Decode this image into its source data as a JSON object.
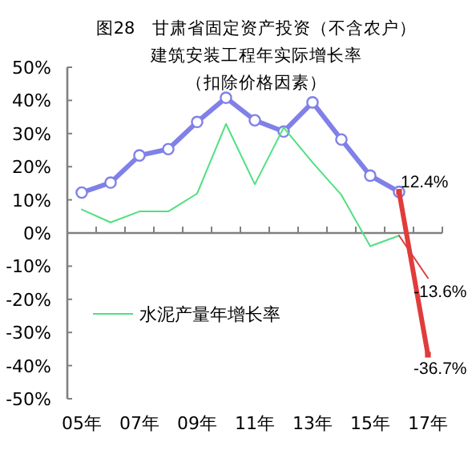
{
  "chart_data": {
    "type": "line",
    "title": "图28　甘肃省固定资产投资（不含农户）",
    "subtitle": "建筑安装工程年实际增长率（扣除价格因素）",
    "categories": [
      "05年",
      null,
      "07年",
      null,
      "09年",
      null,
      "11年",
      null,
      "13年",
      null,
      "15年",
      null,
      "17年"
    ],
    "ylim": [
      -50,
      50
    ],
    "yticks": [
      {
        "value": -50,
        "label": "-50%"
      },
      {
        "value": -40,
        "label": "-40%"
      },
      {
        "value": -30,
        "label": "-30%"
      },
      {
        "value": -20,
        "label": "-20%"
      },
      {
        "value": -10,
        "label": "-10%"
      },
      {
        "value": 0,
        "label": "0%"
      },
      {
        "value": 10,
        "label": "10%"
      },
      {
        "value": 20,
        "label": "20%"
      },
      {
        "value": 30,
        "label": "30%"
      },
      {
        "value": 40,
        "label": "40%"
      },
      {
        "value": 50,
        "label": "50%"
      }
    ],
    "legend": "left",
    "series": [
      {
        "color": "#8080e8",
        "marker": "circle",
        "values": [
          12.2,
          15.2,
          23.4,
          25.3,
          33.5,
          40.8,
          34,
          30.6,
          39.4,
          28.2,
          17.3,
          12.4,
          null
        ]
      },
      {
        "color": "#e03c3c",
        "marker": "square",
        "values": [
          null,
          null,
          null,
          null,
          null,
          null,
          null,
          null,
          null,
          null,
          null,
          12.4,
          -36.7
        ],
        "value_labels": [
          null,
          null,
          null,
          null,
          null,
          null,
          null,
          null,
          null,
          null,
          null,
          "12.4%",
          "-36.7%"
        ]
      },
      {
        "name": "水泥产量年增长率",
        "color": "#50e080",
        "values": [
          7.1,
          3.2,
          6.5,
          6.5,
          11.9,
          32.9,
          14.7,
          31.8,
          21.3,
          11.5,
          -4.0,
          -0.8,
          null
        ]
      },
      {
        "color": "#e03c3c",
        "values": [
          null,
          null,
          null,
          null,
          null,
          null,
          null,
          null,
          null,
          null,
          null,
          -0.8,
          -13.6
        ],
        "value_labels": [
          null,
          null,
          null,
          null,
          null,
          null,
          null,
          null,
          null,
          null,
          null,
          null,
          "-13.6%"
        ]
      }
    ]
  }
}
